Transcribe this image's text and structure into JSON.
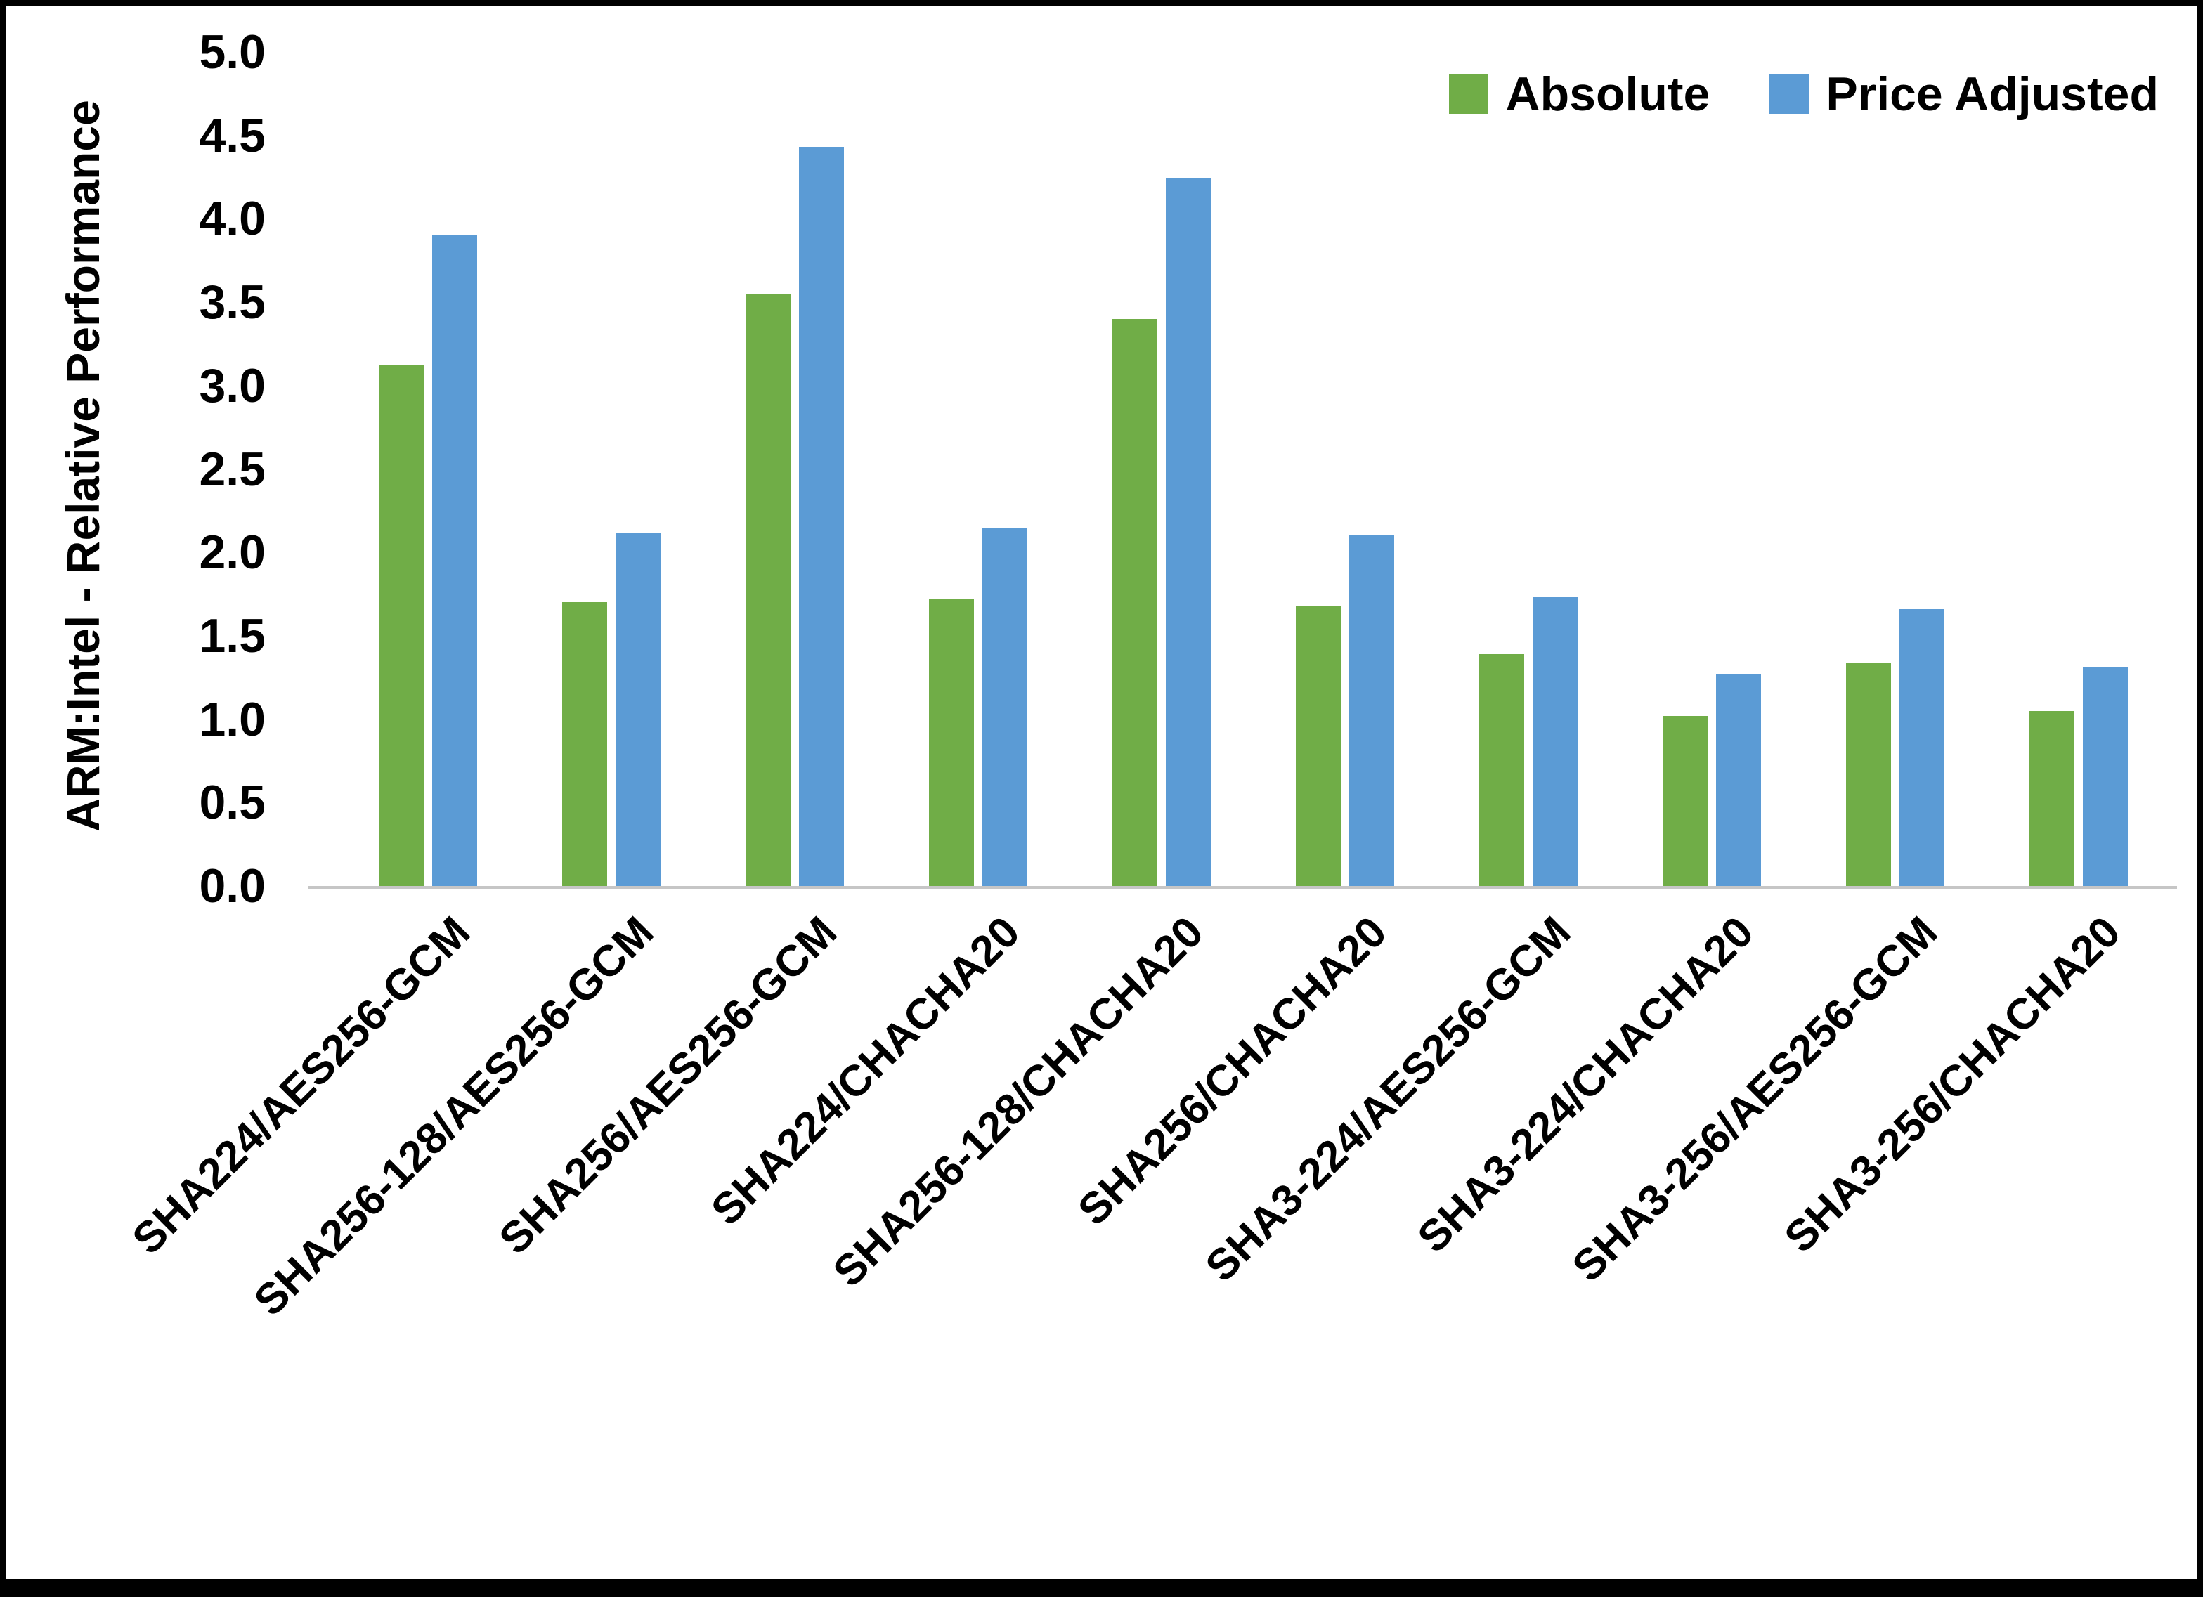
{
  "window": {
    "background": "#ffffff",
    "frame_color": "#000000"
  },
  "chart_data": {
    "type": "bar",
    "title": "",
    "xlabel": "",
    "ylabel": "ARM:Intel - Relative Performance",
    "ylim": [
      0,
      5
    ],
    "ytick_step": 0.5,
    "yticks": [
      "0.0",
      "0.5",
      "1.0",
      "1.5",
      "2.0",
      "2.5",
      "3.0",
      "3.5",
      "4.0",
      "4.5",
      "5.0"
    ],
    "grid": false,
    "legend_position": "top-right",
    "categories": [
      "SHA224/AES256-GCM",
      "SHA256-128/AES256-GCM",
      "SHA256/AES256-GCM",
      "SHA224/CHACHA20",
      "SHA256-128/CHACHA20",
      "SHA256/CHACHA20",
      "SHA3-224/AES256-GCM",
      "SHA3-224/CHACHA20",
      "SHA3-256/AES256-GCM",
      "SHA3-256/CHACHA20"
    ],
    "series": [
      {
        "name": "Absolute",
        "color": "#70AD47",
        "values": [
          3.12,
          1.7,
          3.55,
          1.72,
          3.4,
          1.68,
          1.39,
          1.02,
          1.34,
          1.05
        ]
      },
      {
        "name": "Price Adjusted",
        "color": "#5B9BD5",
        "values": [
          3.9,
          2.12,
          4.43,
          2.15,
          4.24,
          2.1,
          1.73,
          1.27,
          1.66,
          1.31
        ]
      }
    ]
  }
}
